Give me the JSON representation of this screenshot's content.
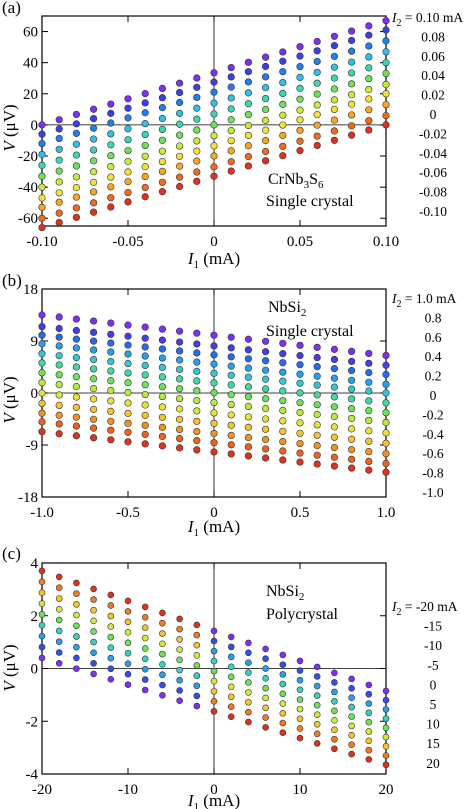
{
  "chart_data": [
    {
      "type": "scatter",
      "panel_label": "(a)",
      "annotation": [
        "CrNb3S6",
        "Single crystal"
      ],
      "xlabel": "I1 (mA)",
      "ylabel": "V (μV)",
      "xlim": [
        -0.1,
        0.1
      ],
      "ylim": [
        -65,
        70
      ],
      "xticks": [
        -0.1,
        -0.05,
        0,
        0.05,
        0.1
      ],
      "xtick_labels": [
        "-0.10",
        "-0.05",
        "0",
        "0.05",
        "0.10"
      ],
      "yticks": [
        -60,
        -40,
        -20,
        0,
        20,
        40,
        60
      ],
      "ytick_labels": [
        "-60",
        "-40",
        "-20",
        "0",
        "20",
        "40",
        "60"
      ],
      "n_points": 21,
      "legend_title": "I2 = ",
      "series": [
        {
          "name": "0.10 mA",
          "y_at_xmin": 0,
          "y_at_xmax": 67
        },
        {
          "name": "0.08",
          "y_at_xmin": -6,
          "y_at_xmax": 61
        },
        {
          "name": "0.06",
          "y_at_xmin": -12,
          "y_at_xmax": 54
        },
        {
          "name": "0.04",
          "y_at_xmin": -19,
          "y_at_xmax": 47
        },
        {
          "name": "0.02",
          "y_at_xmin": -26,
          "y_at_xmax": 40
        },
        {
          "name": "0",
          "y_at_xmin": -33,
          "y_at_xmax": 33
        },
        {
          "name": "-0.02",
          "y_at_xmin": -40,
          "y_at_xmax": 26
        },
        {
          "name": "-0.04",
          "y_at_xmin": -47,
          "y_at_xmax": 20
        },
        {
          "name": "-0.06",
          "y_at_xmin": -53,
          "y_at_xmax": 13
        },
        {
          "name": "-0.08",
          "y_at_xmin": -60,
          "y_at_xmax": 6
        },
        {
          "name": "-0.10",
          "y_at_xmin": -66,
          "y_at_xmax": 0
        }
      ]
    },
    {
      "type": "scatter",
      "panel_label": "(b)",
      "annotation": [
        "NbSi2",
        "Single crystal"
      ],
      "xlabel": "I1 (mA)",
      "ylabel": "V (μV)",
      "xlim": [
        -1.0,
        1.0
      ],
      "ylim": [
        -18,
        18
      ],
      "xticks": [
        -1,
        -0.5,
        0,
        0.5,
        1
      ],
      "xtick_labels": [
        "-1.0",
        "-0.5",
        "0",
        "0.5",
        "1.0"
      ],
      "yticks": [
        -18,
        -9,
        0,
        9,
        18
      ],
      "ytick_labels": [
        "-18",
        "-9",
        "0",
        "9",
        "18"
      ],
      "n_points": 21,
      "legend_title": "I2 = ",
      "series": [
        {
          "name": "1.0 mA",
          "y_at_xmin": 13.5,
          "y_at_xmax": 6.5
        },
        {
          "name": "0.8",
          "y_at_xmin": 11.5,
          "y_at_xmax": 4.8
        },
        {
          "name": "0.6",
          "y_at_xmin": 10.0,
          "y_at_xmax": 3.2
        },
        {
          "name": "0.4",
          "y_at_xmin": 8.5,
          "y_at_xmax": 1.5
        },
        {
          "name": "0.2",
          "y_at_xmin": 6.8,
          "y_at_xmax": 0.0
        },
        {
          "name": "0",
          "y_at_xmin": 5.2,
          "y_at_xmax": -1.7
        },
        {
          "name": "-0.2",
          "y_at_xmin": 3.5,
          "y_at_xmax": -3.4
        },
        {
          "name": "-0.4",
          "y_at_xmin": 1.8,
          "y_at_xmax": -5.1
        },
        {
          "name": "-0.6",
          "y_at_xmin": 0.0,
          "y_at_xmax": -6.9
        },
        {
          "name": "-0.8",
          "y_at_xmin": -1.8,
          "y_at_xmax": -8.7
        },
        {
          "name": "-1.0",
          "y_at_xmin": -3.5,
          "y_at_xmax": -10.5
        },
        {
          "name": "",
          "y_at_xmin": -5.0,
          "y_at_xmax": -12.2
        },
        {
          "name": "",
          "y_at_xmin": -6.7,
          "y_at_xmax": -13.7
        }
      ]
    },
    {
      "type": "scatter",
      "panel_label": "(c)",
      "annotation": [
        "NbSi2",
        "Polycrystal"
      ],
      "xlabel": "I1 (mA)",
      "ylabel": "V (μV)",
      "xlim": [
        -20,
        20
      ],
      "ylim": [
        -4,
        4
      ],
      "xticks": [
        -20,
        -10,
        0,
        10,
        20
      ],
      "xtick_labels": [
        "-20",
        "-10",
        "0",
        "10",
        "20"
      ],
      "yticks": [
        -4,
        -2,
        0,
        2,
        4
      ],
      "ytick_labels": [
        "-4",
        "-2",
        "0",
        "2",
        "4"
      ],
      "x": [
        -20,
        -18,
        -16,
        -14,
        -12,
        -10,
        -8,
        -6,
        -4,
        -2,
        0,
        2,
        4,
        6,
        8,
        10,
        12,
        14,
        16,
        18,
        20
      ],
      "top_y_at_xmin": 3.7,
      "top_y_at_xmax": -0.85,
      "column_span": [
        3.3,
        2.8
      ],
      "n_levels": 9,
      "legend_title": "I2 = ",
      "legend_values": [
        "-20 mA",
        "-15",
        "-10",
        "-5",
        "0",
        "5",
        "10",
        "15",
        "20"
      ]
    }
  ],
  "color_scale": [
    "#7b2ff7",
    "#3b3fe6",
    "#1f7ff0",
    "#2fc0e8",
    "#39d6b0",
    "#6ee05a",
    "#c7ea3c",
    "#f4e03a",
    "#f5a623",
    "#f26b1d",
    "#e0301e"
  ]
}
